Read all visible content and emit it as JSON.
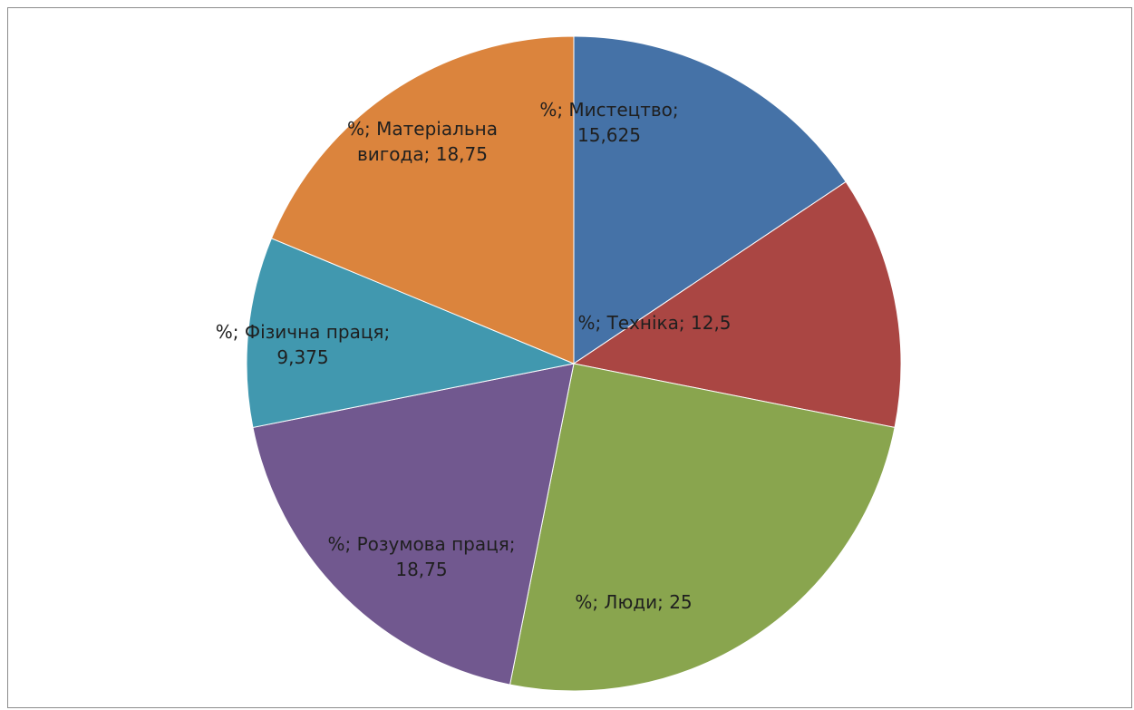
{
  "chart_data": {
    "type": "pie",
    "title": "",
    "categories": [
      "Мистецтво",
      "Техніка",
      "Люди",
      "Розумова праця",
      "Фізична праця",
      "Матеріальна вигода"
    ],
    "values": [
      15.625,
      12.5,
      25,
      18.75,
      9.375,
      18.75
    ],
    "series": [
      {
        "name": "%",
        "values": [
          15.625,
          12.5,
          25,
          18.75,
          9.375,
          18.75
        ]
      }
    ],
    "colors": [
      "#4572A7",
      "#AA4643",
      "#89A54E",
      "#71588F",
      "#4198AF",
      "#DB843D"
    ],
    "data_labels": [
      {
        "lines": [
          "%; Мистецтво;",
          "15,625"
        ]
      },
      {
        "lines": [
          "%; Техніка; 12,5"
        ]
      },
      {
        "lines": [
          "%; Люди; 25"
        ]
      },
      {
        "lines": [
          "%; Розумова праця;",
          "18,75"
        ]
      },
      {
        "lines": [
          "%; Фізична праця;",
          "9,375"
        ]
      },
      {
        "lines": [
          "%; Матеріальна",
          "вигода; 18,75"
        ]
      }
    ],
    "legend": "none",
    "start_angle": "12 o'clock",
    "direction": "clockwise"
  }
}
